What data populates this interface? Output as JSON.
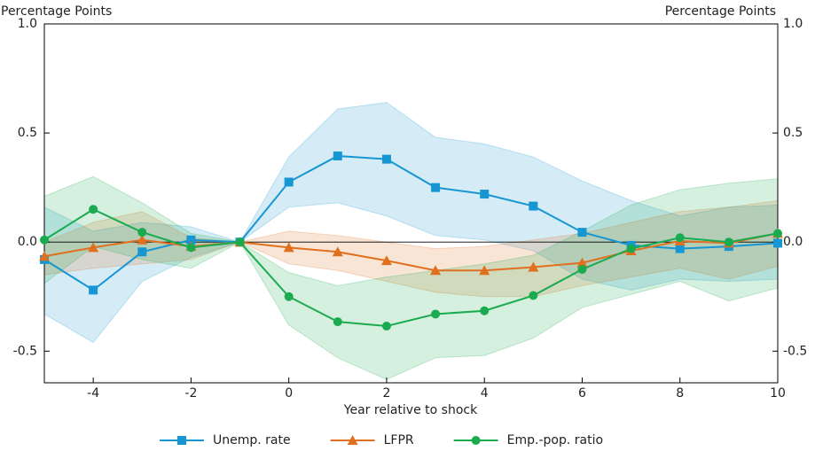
{
  "chart_data": {
    "type": "line",
    "y_label": "Percentage Points",
    "y2_label": "Percentage Points",
    "x_label": "Year relative to shock",
    "x": [
      -5,
      -4,
      -3,
      -2,
      -1,
      0,
      1,
      2,
      3,
      4,
      5,
      6,
      7,
      8,
      9,
      10
    ],
    "xlim": [
      -5,
      10
    ],
    "xticks": [
      -4,
      -2,
      0,
      2,
      4,
      6,
      8,
      10
    ],
    "ylim": [
      -0.645,
      1.0
    ],
    "yticks": [
      {
        "value": 1,
        "label": "1.0"
      },
      0.5,
      {
        "value": 0,
        "label": "0.0"
      },
      -0.5
    ],
    "y2lim": [
      -0.645,
      1.0
    ],
    "y2ticks": [
      {
        "value": 1,
        "label": "1.0"
      },
      0.5,
      {
        "value": 0,
        "label": "0.0"
      },
      -0.5
    ],
    "legend": "bottom",
    "series": [
      {
        "name": "Unemp. rate",
        "color": "#1696d2",
        "marker": "square",
        "values": [
          -0.08,
          -0.22,
          -0.045,
          0.01,
          0,
          0.275,
          0.395,
          0.38,
          0.25,
          0.22,
          0.165,
          0.045,
          -0.015,
          -0.03,
          -0.02,
          -0.005
        ],
        "upper": [
          0.16,
          0.05,
          0.09,
          0.07,
          0,
          0.39,
          0.61,
          0.64,
          0.48,
          0.45,
          0.39,
          0.28,
          0.19,
          0.12,
          0.16,
          0.17
        ],
        "lower": [
          -0.33,
          -0.46,
          -0.18,
          -0.07,
          0,
          0.16,
          0.18,
          0.12,
          0.03,
          0.01,
          -0.04,
          -0.17,
          -0.22,
          -0.17,
          -0.18,
          -0.17
        ]
      },
      {
        "name": "LFPR",
        "color": "#e0701e",
        "marker": "triangle",
        "values": [
          -0.065,
          -0.025,
          0.01,
          -0.02,
          0,
          -0.025,
          -0.045,
          -0.085,
          -0.13,
          -0.13,
          -0.115,
          -0.095,
          -0.04,
          0.005,
          -0.005,
          0.04
        ],
        "upper": [
          0.0,
          0.09,
          0.14,
          0.02,
          0,
          0.05,
          0.03,
          0.0,
          -0.03,
          -0.02,
          0.01,
          0.04,
          0.09,
          0.14,
          0.16,
          0.19
        ],
        "lower": [
          -0.15,
          -0.12,
          -0.1,
          -0.08,
          0,
          -0.1,
          -0.13,
          -0.18,
          -0.23,
          -0.25,
          -0.25,
          -0.2,
          -0.16,
          -0.12,
          -0.17,
          -0.11
        ]
      },
      {
        "name": "Emp.-pop. ratio",
        "color": "#1aaa4f",
        "marker": "circle",
        "values": [
          0.01,
          0.15,
          0.045,
          -0.025,
          0,
          -0.25,
          -0.365,
          -0.385,
          -0.33,
          -0.315,
          -0.245,
          -0.125,
          -0.03,
          0.02,
          0.0,
          0.04
        ],
        "upper": [
          0.21,
          0.3,
          0.18,
          0.04,
          0,
          -0.14,
          -0.2,
          -0.16,
          -0.13,
          -0.1,
          -0.06,
          0.05,
          0.17,
          0.24,
          0.27,
          0.29
        ],
        "lower": [
          -0.19,
          -0.02,
          -0.08,
          -0.12,
          0,
          -0.38,
          -0.53,
          -0.63,
          -0.53,
          -0.52,
          -0.44,
          -0.3,
          -0.24,
          -0.18,
          -0.27,
          -0.21
        ]
      }
    ]
  }
}
